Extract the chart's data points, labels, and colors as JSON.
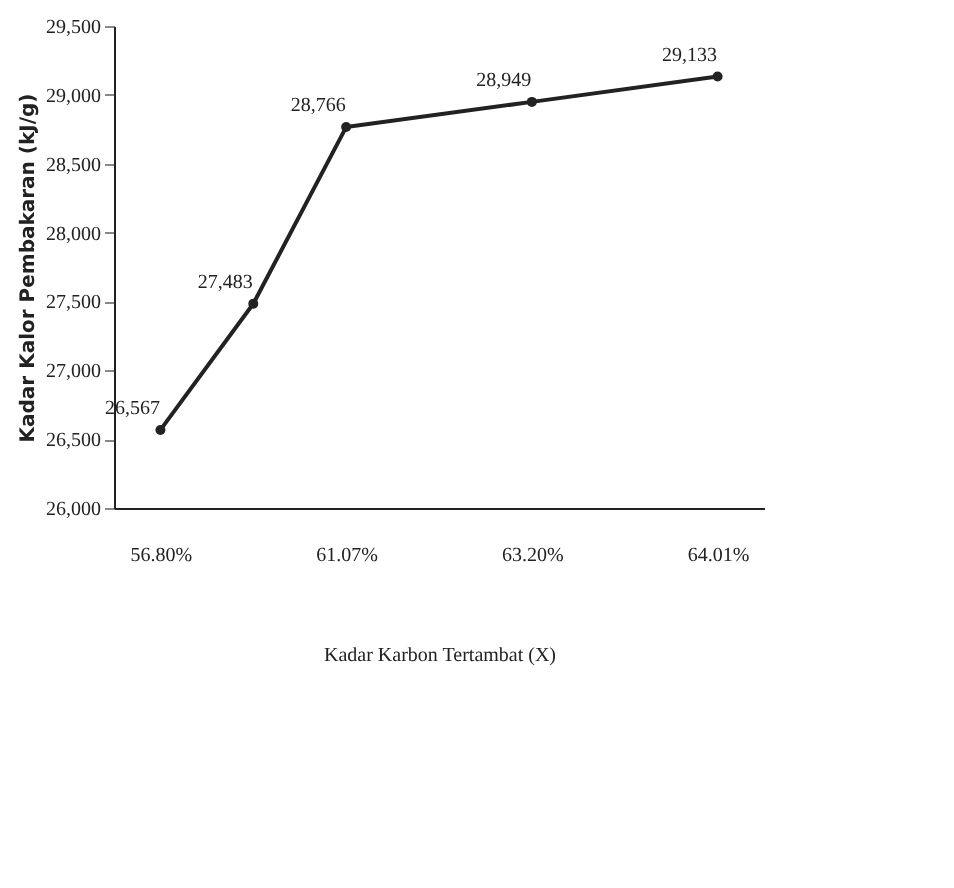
{
  "chart_data": {
    "type": "line",
    "xlabel": "Kadar Karbon Tertambat (X)",
    "ylabel": "Kadar Kalor Pembakaran (kJ/g)",
    "categories": [
      "56.80%",
      null,
      "61.07%",
      null,
      "63.20%",
      null,
      "64.01%"
    ],
    "series": [
      {
        "color": "#222222",
        "values": [
          26567,
          27483,
          28766,
          null,
          28949,
          null,
          29133
        ],
        "value_labels": [
          "26,567",
          "27,483",
          "28,766",
          null,
          "28,949",
          null,
          "29,133"
        ]
      }
    ],
    "ylim": [
      26000,
      29500
    ],
    "yticks": [
      {
        "value": 26000,
        "label": "26,000"
      },
      {
        "value": 26500,
        "label": "26,500"
      },
      {
        "value": 27000,
        "label": "27,000"
      },
      {
        "value": 27500,
        "label": "27,500"
      },
      {
        "value": 28000,
        "label": "28,000"
      },
      {
        "value": 28500,
        "label": "28,500"
      },
      {
        "value": 29000,
        "label": "29,000"
      },
      {
        "value": 29500,
        "label": "29,500"
      }
    ],
    "marker": "circle",
    "line_style": "solid",
    "grid": false
  }
}
